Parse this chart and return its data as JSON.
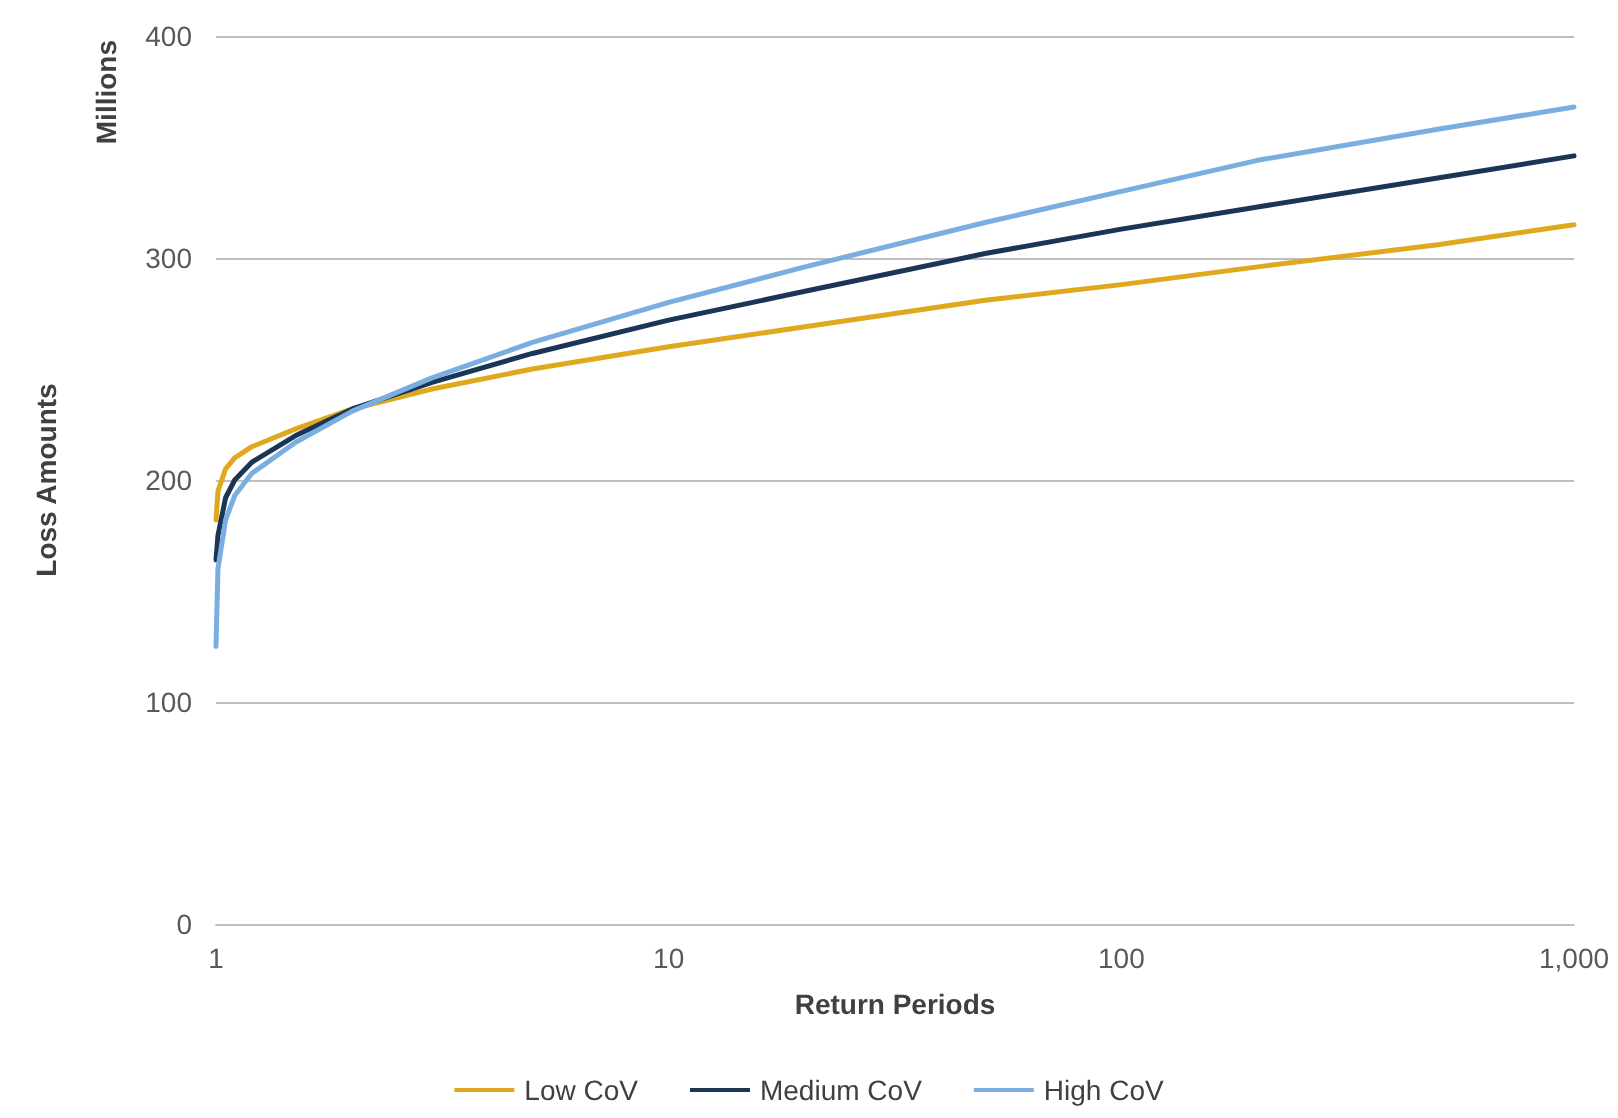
{
  "chart_data": {
    "type": "line",
    "xlabel": "Return Periods",
    "ylabel": "Loss Amounts",
    "annotations": [
      "Millions"
    ],
    "x": [
      1,
      1.01,
      1.05,
      1.1,
      1.2,
      1.5,
      2,
      3,
      5,
      10,
      20,
      50,
      100,
      200,
      500,
      1000
    ],
    "series": [
      {
        "name": "Low CoV",
        "color": "#e0a81c",
        "values": [
          182,
          195,
          205,
          210,
          215,
          223,
          232,
          241,
          250,
          260,
          269,
          281,
          288,
          296,
          306,
          315
        ]
      },
      {
        "name": "Medium CoV",
        "color": "#1a3556",
        "values": [
          164,
          175,
          192,
          200,
          208,
          220,
          232,
          244,
          257,
          272,
          285,
          302,
          313,
          323,
          336,
          346
        ]
      },
      {
        "name": "High CoV",
        "color": "#7aaee0",
        "values": [
          125,
          160,
          182,
          193,
          203,
          217,
          231,
          246,
          262,
          280,
          296,
          316,
          330,
          344,
          358,
          368
        ]
      }
    ],
    "log": "x",
    "xlim": [
      1,
      1000
    ],
    "xticks": [
      1,
      10,
      100,
      {
        "value": 1000,
        "label": "1,000"
      }
    ],
    "ylim": [
      0,
      400
    ],
    "yticks": [
      0,
      100,
      200,
      300,
      400
    ],
    "grid": "y",
    "legend": "bottom",
    "marker": "none",
    "line_style": "solid"
  }
}
